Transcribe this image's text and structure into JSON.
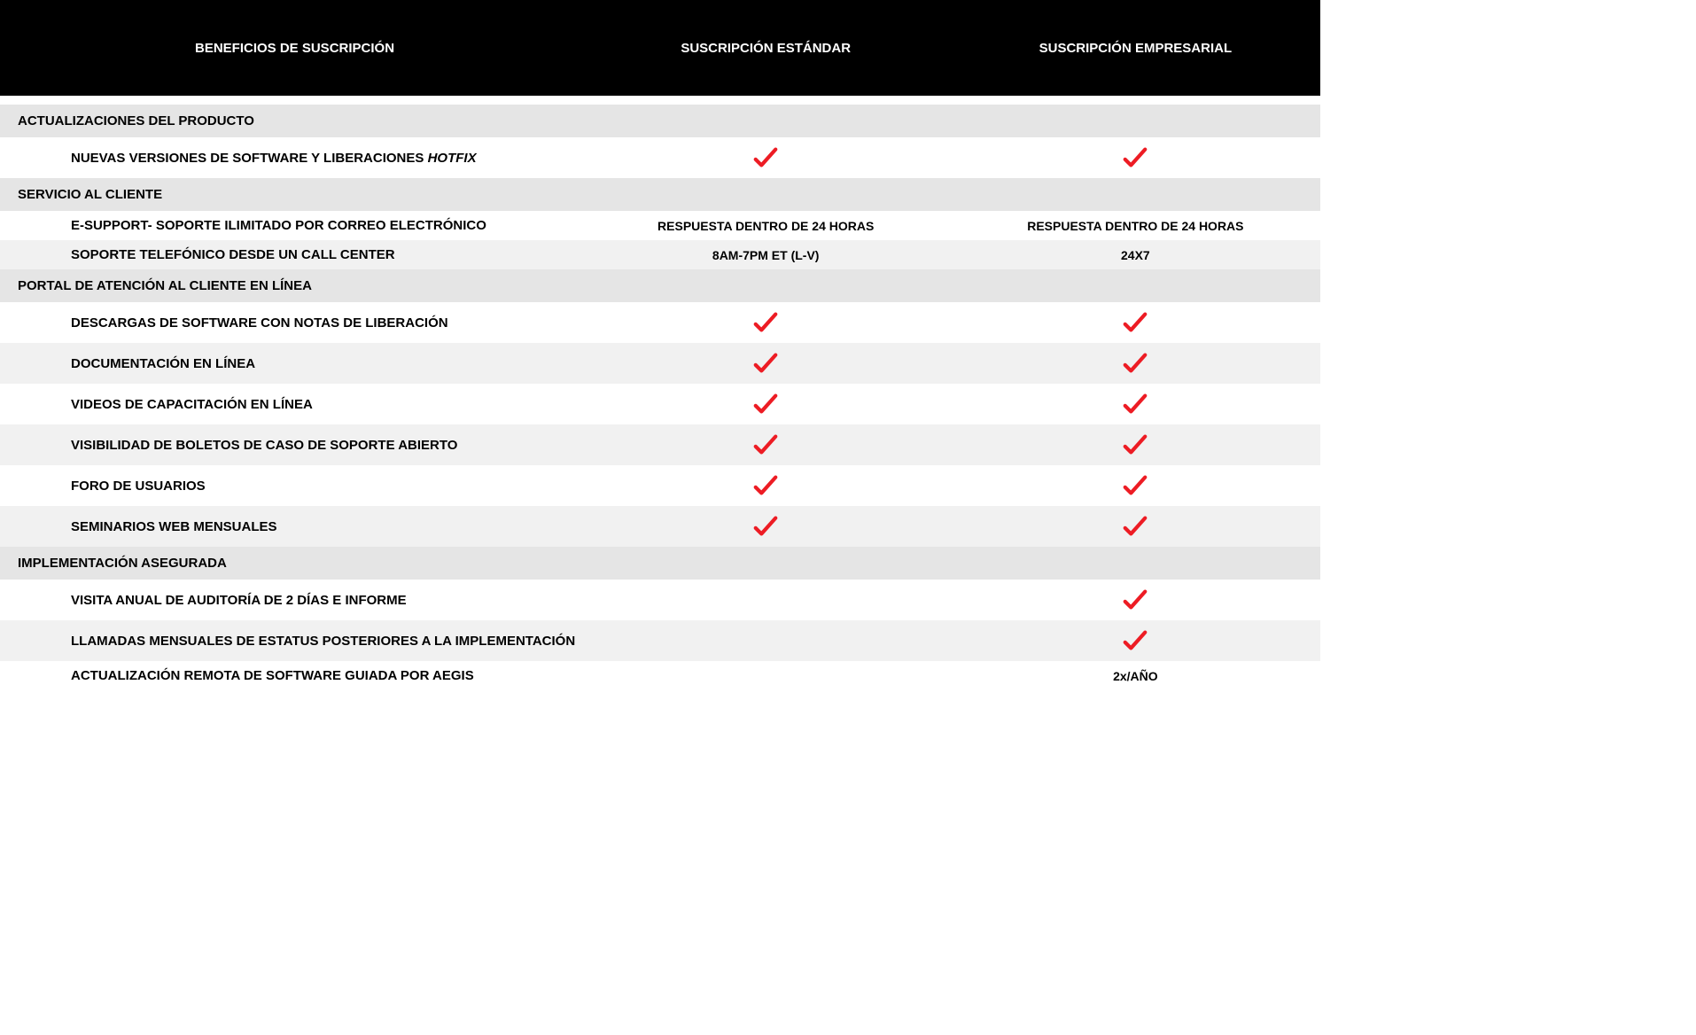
{
  "colors": {
    "header_bg": "#000000",
    "header_text": "#ffffff",
    "section_bg": "#e5e5e5",
    "row_alt_bg": "#f1f1f1",
    "row_bg": "#ffffff",
    "text": "#000000",
    "check": "#ed1c24"
  },
  "header": {
    "col_benefit": "BENEFICIOS DE SUSCRIPCIÓN",
    "col_std": "SUSCRIPCIÓN ESTÁNDAR",
    "col_ent": "SUSCRIPCIÓN EMPRESARIAL"
  },
  "sections": [
    {
      "title": "ACTUALIZACIONES DEL PRODUCTO",
      "rows": [
        {
          "label": "NUEVAS VERSIONES DE SOFTWARE Y LIBERACIONES ",
          "label_italic": "HOTFIX",
          "std": {
            "type": "check"
          },
          "ent": {
            "type": "check"
          },
          "bg": "white"
        }
      ]
    },
    {
      "title": "SERVICIO AL CLIENTE",
      "rows": [
        {
          "label": "E-SUPPORT- SOPORTE ILIMITADO POR CORREO ELECTRÓNICO",
          "std": {
            "type": "text",
            "value": "RESPUESTA DENTRO DE 24 HORAS"
          },
          "ent": {
            "type": "text",
            "value": "RESPUESTA DENTRO DE 24 HORAS"
          },
          "bg": "white"
        },
        {
          "label": "SOPORTE TELEFÓNICO DESDE UN CALL CENTER",
          "std": {
            "type": "text",
            "value": "8AM-7PM ET (L-V)"
          },
          "ent": {
            "type": "text",
            "value": "24X7"
          },
          "bg": "gray"
        }
      ]
    },
    {
      "title": "PORTAL DE ATENCIÓN AL CLIENTE EN LÍNEA",
      "rows": [
        {
          "label": "DESCARGAS DE SOFTWARE CON NOTAS DE LIBERACIÓN",
          "std": {
            "type": "check"
          },
          "ent": {
            "type": "check"
          },
          "bg": "white"
        },
        {
          "label": "DOCUMENTACIÓN EN LÍNEA",
          "std": {
            "type": "check"
          },
          "ent": {
            "type": "check"
          },
          "bg": "gray"
        },
        {
          "label": "VIDEOS DE CAPACITACIÓN EN LÍNEA",
          "std": {
            "type": "check"
          },
          "ent": {
            "type": "check"
          },
          "bg": "white"
        },
        {
          "label": "VISIBILIDAD DE BOLETOS DE CASO DE SOPORTE ABIERTO",
          "std": {
            "type": "check"
          },
          "ent": {
            "type": "check"
          },
          "bg": "gray"
        },
        {
          "label": "FORO DE USUARIOS",
          "std": {
            "type": "check"
          },
          "ent": {
            "type": "check"
          },
          "bg": "white"
        },
        {
          "label": "SEMINARIOS WEB MENSUALES",
          "std": {
            "type": "check"
          },
          "ent": {
            "type": "check"
          },
          "bg": "gray"
        }
      ]
    },
    {
      "title": "IMPLEMENTACIÓN ASEGURADA",
      "rows": [
        {
          "label": "VISITA ANUAL DE AUDITORÍA DE 2 DÍAS E INFORME",
          "std": {
            "type": "none"
          },
          "ent": {
            "type": "check"
          },
          "bg": "white"
        },
        {
          "label": "LLAMADAS MENSUALES DE ESTATUS POSTERIORES A LA IMPLEMENTACIÓN",
          "std": {
            "type": "none"
          },
          "ent": {
            "type": "check"
          },
          "bg": "gray"
        },
        {
          "label": "ACTUALIZACIÓN REMOTA DE SOFTWARE GUIADA POR AEGIS",
          "std": {
            "type": "none"
          },
          "ent": {
            "type": "text",
            "value": "2x/AÑO"
          },
          "bg": "white"
        }
      ]
    }
  ]
}
